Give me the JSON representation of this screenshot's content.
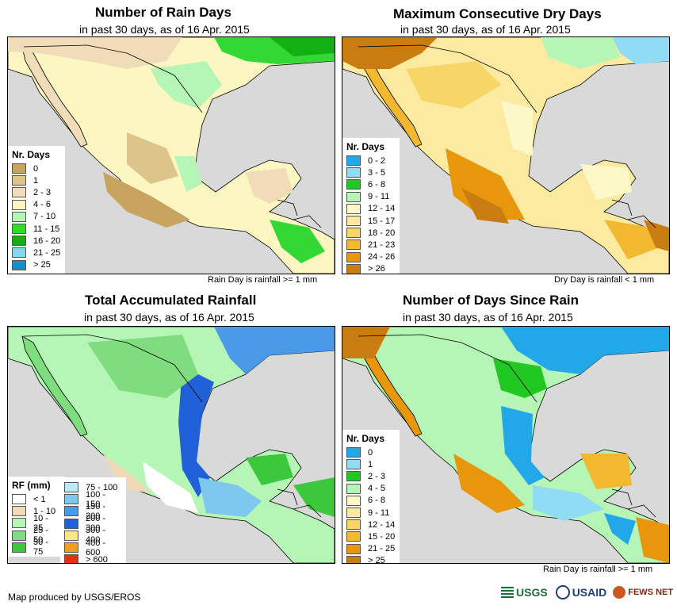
{
  "colors": {
    "ocean": "#d9d9d9",
    "land_default": "#ffffff",
    "border": "#000000"
  },
  "panels": [
    {
      "id": "rain_days",
      "title": "Number of Rain Days",
      "subtitle": "in past 30 days, as of 16 Apr. 2015",
      "legend_title": "Nr. Days",
      "legend": [
        {
          "label": "0",
          "color": "#c8a45e"
        },
        {
          "label": "1",
          "color": "#dcc48a"
        },
        {
          "label": "2 - 3",
          "color": "#f0dcb8"
        },
        {
          "label": "4 - 6",
          "color": "#fbf6c2"
        },
        {
          "label": "7 - 10",
          "color": "#b5f5b5"
        },
        {
          "label": "11 - 15",
          "color": "#34d834"
        },
        {
          "label": "16 - 20",
          "color": "#13b013"
        },
        {
          "label": "21 - 25",
          "color": "#7fdcf0"
        },
        {
          "label": "> 25",
          "color": "#1b8ec9"
        }
      ],
      "note": "Rain Day is rainfall >= 1 mm"
    },
    {
      "id": "dry_days",
      "title": "Maximum Consecutive Dry Days",
      "subtitle": "in past 30 days, as of 16 Apr. 2015",
      "legend_title": "Nr. Days",
      "legend": [
        {
          "label": "0 - 2",
          "color": "#22a8e8"
        },
        {
          "label": "3 - 5",
          "color": "#90dcf5"
        },
        {
          "label": "6 - 8",
          "color": "#22c822"
        },
        {
          "label": "9 - 11",
          "color": "#b5f5b5"
        },
        {
          "label": "12 - 14",
          "color": "#fdf8c8"
        },
        {
          "label": "15 - 17",
          "color": "#fbeaa0"
        },
        {
          "label": "18 - 20",
          "color": "#f7d566"
        },
        {
          "label": "21 - 23",
          "color": "#f2b830"
        },
        {
          "label": "24 - 26",
          "color": "#e8970c"
        },
        {
          "label": "> 26",
          "color": "#c97c10"
        }
      ],
      "note": "Dry Day is rainfall < 1 mm"
    },
    {
      "id": "total_rf",
      "title": "Total Accumulated Rainfall",
      "subtitle": "in past 30 days, as of 16 Apr. 2015",
      "legend_title": "RF (mm)",
      "legend": [
        {
          "label": "< 1",
          "color": "#ffffff"
        },
        {
          "label": "1 - 10",
          "color": "#f0d9b5"
        },
        {
          "label": "10 - 25",
          "color": "#b5f5b5"
        },
        {
          "label": "25 - 50",
          "color": "#7fdc7f"
        },
        {
          "label": "50 - 75",
          "color": "#3cc83c"
        }
      ],
      "legend2": [
        {
          "label": "75 - 100",
          "color": "#bde8f8"
        },
        {
          "label": "100 - 150",
          "color": "#7ec8f0"
        },
        {
          "label": "150 - 200",
          "color": "#4a9ae8"
        },
        {
          "label": "200 - 300",
          "color": "#2060d8"
        },
        {
          "label": "300 - 400",
          "color": "#fbe58a"
        },
        {
          "label": "400 - 600",
          "color": "#f0a020"
        },
        {
          "label": "> 600",
          "color": "#e83010"
        }
      ],
      "note": ""
    },
    {
      "id": "since_rain",
      "title": "Number of Days Since Rain",
      "subtitle": "in past 30 days, as of 16 Apr. 2015",
      "legend_title": "Nr. Days",
      "legend": [
        {
          "label": "0",
          "color": "#22a8e8"
        },
        {
          "label": "1",
          "color": "#90dcf5"
        },
        {
          "label": "2 - 3",
          "color": "#22c822"
        },
        {
          "label": "4 - 5",
          "color": "#b5f5b5"
        },
        {
          "label": "6 - 8",
          "color": "#fdf8c8"
        },
        {
          "label": "9 - 11",
          "color": "#fbeaa0"
        },
        {
          "label": "12 - 14",
          "color": "#f7d566"
        },
        {
          "label": "15 - 20",
          "color": "#f2b830"
        },
        {
          "label": "21 - 25",
          "color": "#e8970c"
        },
        {
          "label": "> 25",
          "color": "#c97c10"
        }
      ],
      "note": "Rain Day is rainfall >= 1 mm"
    }
  ],
  "footer": {
    "credit": "Map produced by USGS/EROS",
    "logos": [
      "USGS",
      "USAID",
      "FEWS NET"
    ]
  }
}
